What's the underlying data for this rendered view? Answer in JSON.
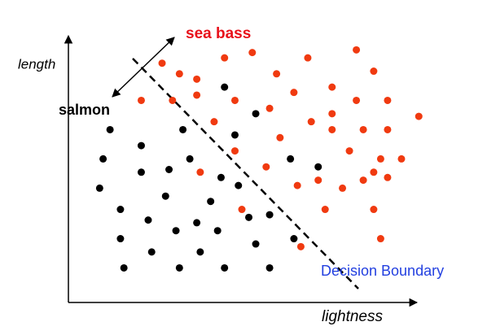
{
  "chart_data": {
    "type": "scatter",
    "x_label": "lightness",
    "y_label": "length",
    "annotation": "Decision Boundary",
    "xlim": [
      0,
      100
    ],
    "ylim": [
      0,
      100
    ],
    "series": [
      {
        "name": "salmon",
        "color": "#000000",
        "x": [
          45,
          54,
          12,
          33,
          48,
          21,
          10,
          35,
          64,
          72,
          21,
          29,
          44,
          9,
          28,
          49,
          41,
          15,
          23,
          37,
          52,
          58,
          31,
          43,
          15,
          24,
          38,
          54,
          16,
          32,
          45,
          58,
          65
        ],
        "y": [
          81,
          71,
          65,
          65,
          63,
          59,
          54,
          54,
          54,
          51,
          49,
          50,
          47,
          43,
          40,
          44,
          38,
          35,
          31,
          30,
          32,
          33,
          27,
          27,
          24,
          19,
          19,
          22,
          13,
          13,
          13,
          13,
          24
        ]
      },
      {
        "name": "sea bass",
        "color": "#f03a10",
        "x": [
          27,
          45,
          53,
          69,
          83,
          32,
          37,
          60,
          88,
          21,
          30,
          37,
          48,
          76,
          65,
          58,
          83,
          92,
          76,
          70,
          42,
          76,
          85,
          92,
          101,
          61,
          48,
          81,
          90,
          96,
          38,
          57,
          88,
          85,
          92,
          66,
          79,
          72,
          50,
          74,
          88,
          90,
          67
        ],
        "y": [
          90,
          92,
          94,
          92,
          95,
          86,
          84,
          86,
          87,
          76,
          76,
          78,
          76,
          81,
          79,
          73,
          76,
          76,
          71,
          68,
          68,
          65,
          65,
          65,
          70,
          62,
          57,
          57,
          54,
          54,
          49,
          51,
          49,
          46,
          47,
          44,
          43,
          46,
          35,
          35,
          35,
          24,
          21
        ]
      }
    ]
  }
}
